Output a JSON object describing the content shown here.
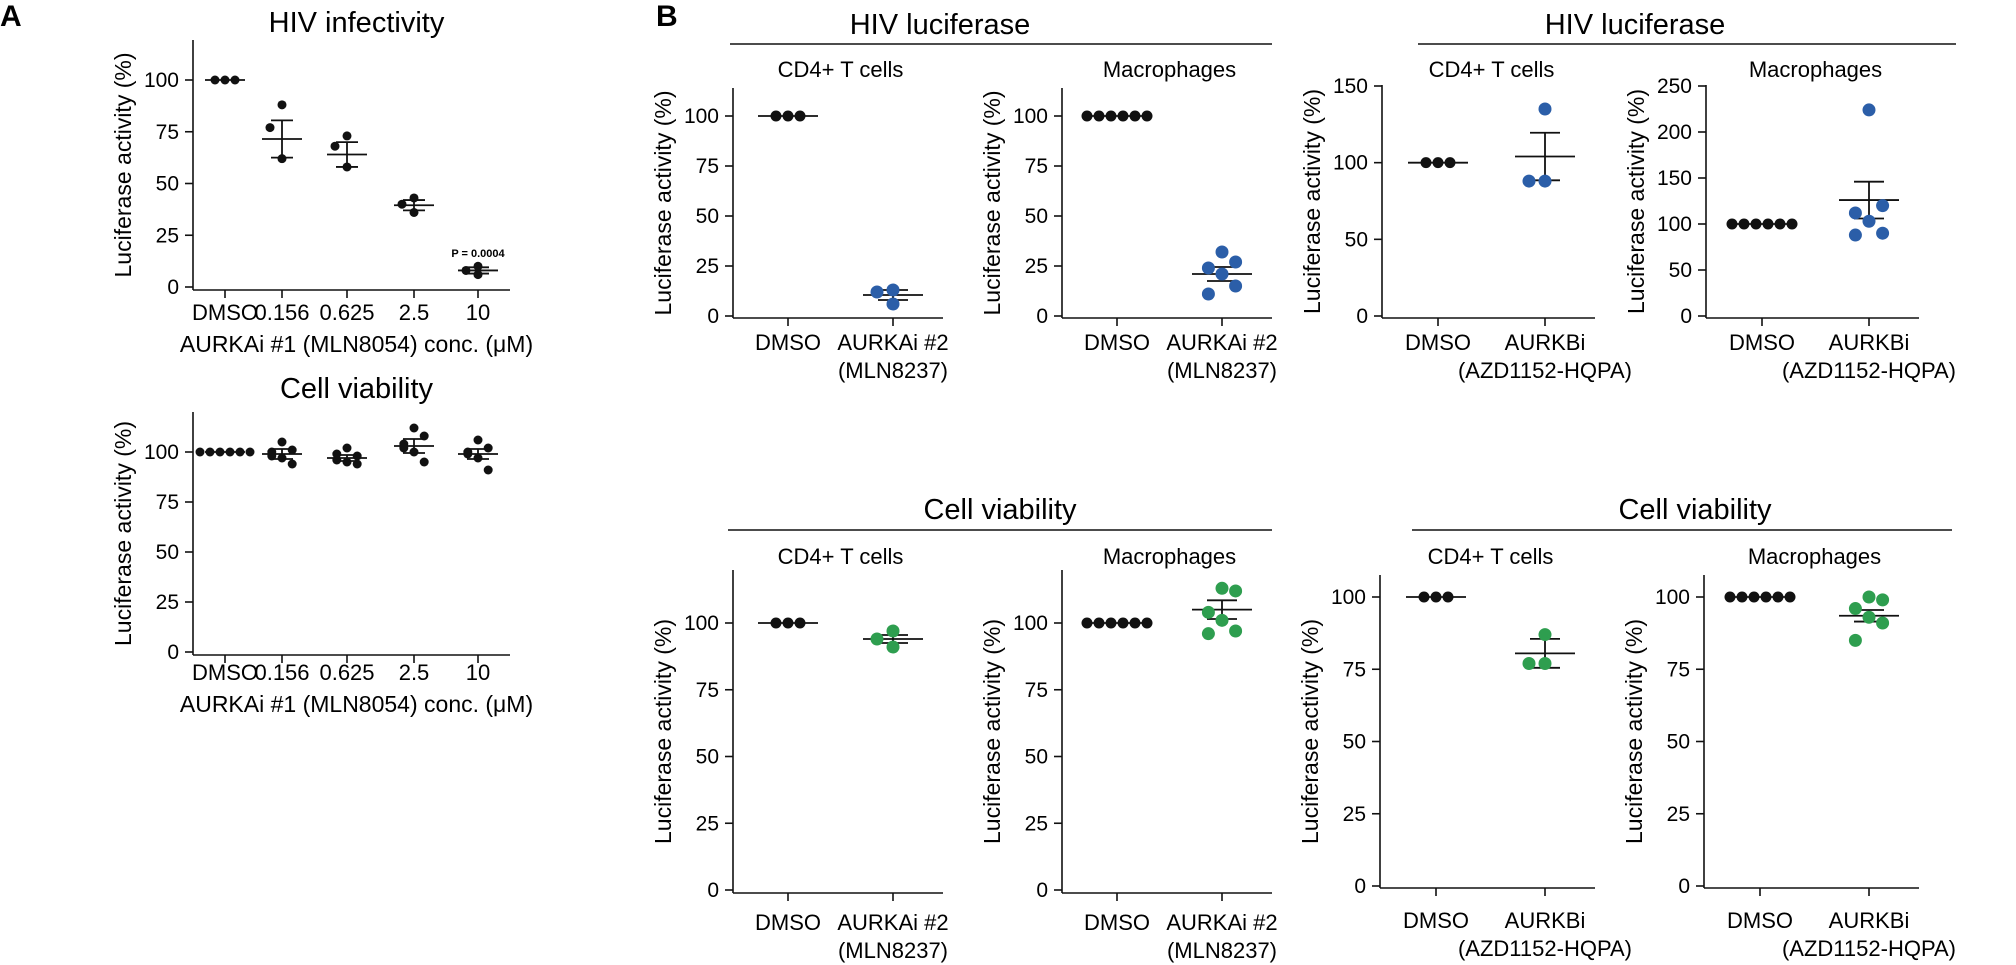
{
  "panel_letters": [
    "A",
    "B"
  ],
  "groups": [
    {
      "title": "HIV luciferase"
    },
    {
      "title": "HIV luciferase"
    },
    {
      "title": "Cell viability"
    },
    {
      "title": "Cell viability"
    }
  ],
  "colors": {
    "axis": "#111111",
    "dmso": "#111111",
    "inhibitor_luciferase": "#2b5ea8",
    "inhibitor_viability": "#2e9e4f"
  },
  "chart_data": [
    {
      "type": "scatter",
      "panel": "A",
      "title": "HIV infectivity",
      "subtitle": "",
      "ylabel": "Luciferase activity (%)",
      "xlabel": "AURKAi #1 (MLN8054) conc. (μM)",
      "ylim": [
        0,
        110
      ],
      "yticks": [
        0,
        25,
        50,
        75,
        100
      ],
      "categories": [
        "DMSO",
        "0.156",
        "0.625",
        "2.5",
        "10"
      ],
      "colors": [
        "#111111",
        "#111111",
        "#111111",
        "#111111",
        "#111111"
      ],
      "series": [
        {
          "category": "DMSO",
          "points": [
            100,
            100,
            100
          ],
          "mean": 100,
          "error": 0
        },
        {
          "category": "0.156",
          "points": [
            88,
            77,
            62
          ],
          "mean": 71.5,
          "error": 9
        },
        {
          "category": "0.625",
          "points": [
            73,
            68,
            58
          ],
          "mean": 64,
          "error": 6
        },
        {
          "category": "2.5",
          "points": [
            43,
            40,
            36
          ],
          "mean": 39.5,
          "error": 2.5
        },
        {
          "category": "10",
          "points": [
            10,
            8,
            6
          ],
          "mean": 8,
          "error": 1.5
        }
      ],
      "annotations": [
        {
          "category": "10",
          "y": 17,
          "text": "P = 0.0004"
        }
      ]
    },
    {
      "type": "scatter",
      "panel": "A",
      "title": "Cell viability",
      "subtitle": "",
      "ylabel": "Luciferase activity (%)",
      "xlabel": "AURKAi #1 (MLN8054) conc. (μM)",
      "ylim": [
        0,
        120
      ],
      "yticks": [
        0,
        25,
        50,
        75,
        100
      ],
      "categories": [
        "DMSO",
        "0.156",
        "0.625",
        "2.5",
        "10"
      ],
      "colors": [
        "#111111",
        "#111111",
        "#111111",
        "#111111",
        "#111111"
      ],
      "series": [
        {
          "category": "DMSO",
          "points": [
            100,
            100,
            100,
            100,
            100,
            100
          ],
          "mean": 100,
          "error": 0
        },
        {
          "category": "0.156",
          "points": [
            105,
            101,
            98,
            97,
            94,
            100
          ],
          "mean": 99,
          "error": 2.5
        },
        {
          "category": "0.625",
          "points": [
            102,
            98,
            96,
            95,
            94,
            99
          ],
          "mean": 97,
          "error": 1.5
        },
        {
          "category": "2.5",
          "points": [
            112,
            108,
            104,
            100,
            95,
            102
          ],
          "mean": 103,
          "error": 3.5
        },
        {
          "category": "10",
          "points": [
            106,
            102,
            99,
            97,
            91,
            100
          ],
          "mean": 99,
          "error": 2.5
        }
      ],
      "annotations": []
    },
    {
      "type": "scatter",
      "panel": "B",
      "title": "",
      "subtitle": "CD4+ T cells",
      "ylabel": "Luciferase activity (%)",
      "xlabel": "",
      "ylim": [
        0,
        110
      ],
      "yticks": [
        0,
        25,
        50,
        75,
        100
      ],
      "categories": [
        "DMSO",
        "AURKAi #2\n(MLN8237)"
      ],
      "colors": [
        "#111111",
        "#2b5ea8"
      ],
      "series": [
        {
          "category": "DMSO",
          "points": [
            100,
            100,
            100
          ],
          "mean": 100,
          "error": 0
        },
        {
          "category": "AURKAi #2\n(MLN8237)",
          "points": [
            13,
            12,
            6
          ],
          "mean": 10.5,
          "error": 2.5
        }
      ],
      "annotations": []
    },
    {
      "type": "scatter",
      "panel": "B",
      "title": "",
      "subtitle": "Macrophages",
      "ylabel": "Luciferase activity (%)",
      "xlabel": "",
      "ylim": [
        0,
        110
      ],
      "yticks": [
        0,
        25,
        50,
        75,
        100
      ],
      "categories": [
        "DMSO",
        "AURKAi #2\n(MLN8237)"
      ],
      "colors": [
        "#111111",
        "#2b5ea8"
      ],
      "series": [
        {
          "category": "DMSO",
          "points": [
            100,
            100,
            100,
            100,
            100,
            100
          ],
          "mean": 100,
          "error": 0
        },
        {
          "category": "AURKAi #2\n(MLN8237)",
          "points": [
            32,
            27,
            24,
            21,
            15,
            11
          ],
          "mean": 21,
          "error": 3.5
        }
      ],
      "annotations": []
    },
    {
      "type": "scatter",
      "panel": "B",
      "title": "",
      "subtitle": "CD4+ T cells",
      "ylabel": "Luciferase activity (%)",
      "xlabel": "",
      "ylim": [
        0,
        150
      ],
      "yticks": [
        0,
        50,
        100,
        150
      ],
      "categories": [
        "DMSO",
        "AURKBi\n(AZD1152-HQPA)"
      ],
      "colors": [
        "#111111",
        "#2b5ea8"
      ],
      "series": [
        {
          "category": "DMSO",
          "points": [
            100,
            100,
            100
          ],
          "mean": 100,
          "error": 0
        },
        {
          "category": "AURKBi\n(AZD1152-HQPA)",
          "points": [
            135,
            88,
            88
          ],
          "mean": 104,
          "error": 15.5
        }
      ],
      "annotations": []
    },
    {
      "type": "scatter",
      "panel": "B",
      "title": "",
      "subtitle": "Macrophages",
      "ylabel": "Luciferase activity (%)",
      "xlabel": "",
      "ylim": [
        0,
        250
      ],
      "yticks": [
        0,
        50,
        100,
        150,
        200,
        250
      ],
      "categories": [
        "DMSO",
        "AURKBi\n(AZD1152-HQPA)"
      ],
      "colors": [
        "#111111",
        "#2b5ea8"
      ],
      "series": [
        {
          "category": "DMSO",
          "points": [
            100,
            100,
            100,
            100,
            100,
            100
          ],
          "mean": 100,
          "error": 0
        },
        {
          "category": "AURKBi\n(AZD1152-HQPA)",
          "points": [
            224,
            120,
            112,
            103,
            90,
            88
          ],
          "mean": 126,
          "error": 20
        }
      ],
      "annotations": []
    },
    {
      "type": "scatter",
      "panel": "B",
      "title": "",
      "subtitle": "CD4+ T cells",
      "ylabel": "Luciferase activity (%)",
      "xlabel": "",
      "ylim": [
        0,
        120
      ],
      "yticks": [
        0,
        25,
        50,
        75,
        100
      ],
      "categories": [
        "DMSO",
        "AURKAi #2\n(MLN8237)"
      ],
      "colors": [
        "#111111",
        "#2e9e4f"
      ],
      "series": [
        {
          "category": "DMSO",
          "points": [
            100,
            100,
            100
          ],
          "mean": 100,
          "error": 0
        },
        {
          "category": "AURKAi #2\n(MLN8237)",
          "points": [
            97,
            94,
            91
          ],
          "mean": 94,
          "error": 1.5
        }
      ],
      "annotations": []
    },
    {
      "type": "scatter",
      "panel": "B",
      "title": "",
      "subtitle": "Macrophages",
      "ylabel": "Luciferase activity (%)",
      "xlabel": "",
      "ylim": [
        0,
        120
      ],
      "yticks": [
        0,
        25,
        50,
        75,
        100
      ],
      "categories": [
        "DMSO",
        "AURKAi #2\n(MLN8237)"
      ],
      "colors": [
        "#111111",
        "#2e9e4f"
      ],
      "series": [
        {
          "category": "DMSO",
          "points": [
            100,
            100,
            100,
            100,
            100,
            100
          ],
          "mean": 100,
          "error": 0
        },
        {
          "category": "AURKAi #2\n(MLN8237)",
          "points": [
            113,
            112,
            104,
            101,
            97,
            96
          ],
          "mean": 105,
          "error": 3.5
        }
      ],
      "annotations": []
    },
    {
      "type": "scatter",
      "panel": "B",
      "title": "",
      "subtitle": "CD4+ T cells",
      "ylabel": "Luciferase activity (%)",
      "xlabel": "",
      "ylim": [
        0,
        110
      ],
      "yticks": [
        0,
        25,
        50,
        75,
        100
      ],
      "categories": [
        "DMSO",
        "AURKBi\n(AZD1152-HQPA)"
      ],
      "colors": [
        "#111111",
        "#2e9e4f"
      ],
      "series": [
        {
          "category": "DMSO",
          "points": [
            100,
            100,
            100
          ],
          "mean": 100,
          "error": 0
        },
        {
          "category": "AURKBi\n(AZD1152-HQPA)",
          "points": [
            87,
            77,
            77
          ],
          "mean": 80.5,
          "error": 5
        }
      ],
      "annotations": []
    },
    {
      "type": "scatter",
      "panel": "B",
      "title": "",
      "subtitle": "Macrophages",
      "ylabel": "Luciferase activity (%)",
      "xlabel": "",
      "ylim": [
        0,
        110
      ],
      "yticks": [
        0,
        25,
        50,
        75,
        100
      ],
      "categories": [
        "DMSO",
        "AURKBi\n(AZD1152-HQPA)"
      ],
      "colors": [
        "#111111",
        "#2e9e4f"
      ],
      "series": [
        {
          "category": "DMSO",
          "points": [
            100,
            100,
            100,
            100,
            100,
            100
          ],
          "mean": 100,
          "error": 0
        },
        {
          "category": "AURKBi\n(AZD1152-HQPA)",
          "points": [
            100,
            99,
            96,
            93,
            91,
            85
          ],
          "mean": 93.5,
          "error": 2
        }
      ],
      "annotations": []
    }
  ]
}
